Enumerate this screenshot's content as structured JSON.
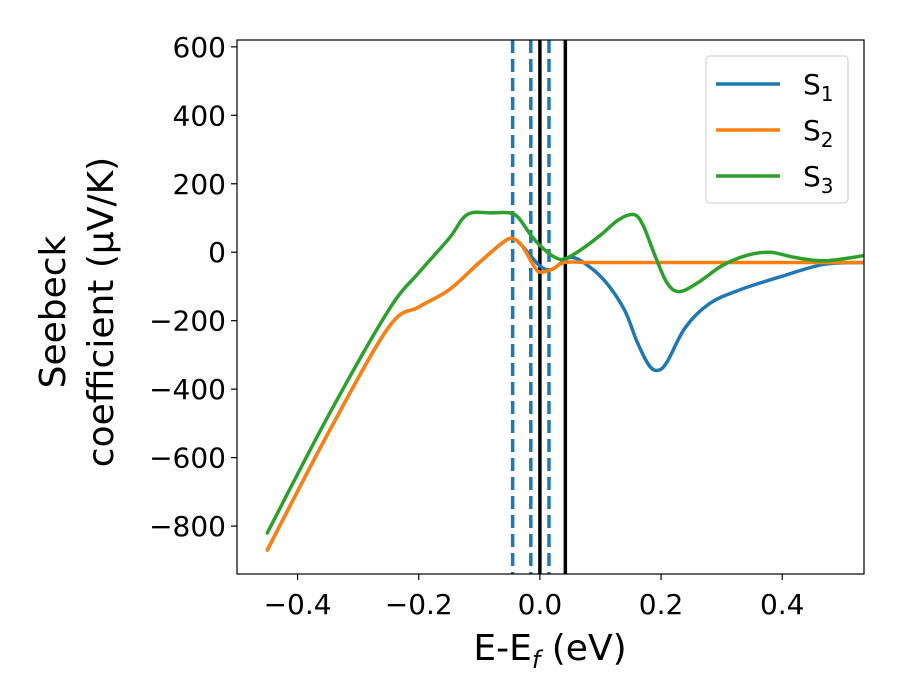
{
  "chart_data": {
    "type": "line",
    "xlabel": {
      "main": "E-E",
      "sub": "f",
      "tail": " (eV)"
    },
    "ylabel": {
      "line1": "Seebeck",
      "line2": "coefficient  (μV/K)"
    },
    "xlim": [
      -0.5,
      0.535
    ],
    "ylim": [
      -940,
      620
    ],
    "xticks": [
      {
        "value": -0.4,
        "label": "−0.4"
      },
      {
        "value": -0.2,
        "label": "−0.2"
      },
      {
        "value": 0.0,
        "label": "0.0"
      },
      {
        "value": 0.2,
        "label": "0.2"
      },
      {
        "value": 0.4,
        "label": "0.4"
      }
    ],
    "yticks": [
      {
        "value": 600,
        "label": "600"
      },
      {
        "value": 400,
        "label": "400"
      },
      {
        "value": 200,
        "label": "200"
      },
      {
        "value": 0,
        "label": "0"
      },
      {
        "value": -200,
        "label": "−200"
      },
      {
        "value": -400,
        "label": "−400"
      },
      {
        "value": -600,
        "label": "−600"
      },
      {
        "value": -800,
        "label": "−800"
      }
    ],
    "grid": false,
    "legend_position": "top-right",
    "series": [
      {
        "name": "S",
        "sub": "1",
        "color": "#1f77b4",
        "x": [
          -0.45,
          -0.35,
          -0.25,
          -0.2,
          -0.15,
          -0.1,
          -0.06,
          -0.045,
          -0.03,
          0.0,
          0.02,
          0.05,
          0.08,
          0.11,
          0.14,
          0.16,
          0.18,
          0.195,
          0.21,
          0.24,
          0.28,
          0.33,
          0.4,
          0.47,
          0.535
        ],
        "y": [
          -870,
          -530,
          -220,
          -160,
          -110,
          -30,
          30,
          40,
          20,
          -40,
          -50,
          -15,
          -40,
          -90,
          -170,
          -260,
          -330,
          -345,
          -320,
          -220,
          -150,
          -110,
          -70,
          -35,
          -30
        ]
      },
      {
        "name": "S",
        "sub": "2",
        "color": "#ff7f0e",
        "x": [
          -0.45,
          -0.35,
          -0.25,
          -0.2,
          -0.15,
          -0.1,
          -0.06,
          -0.045,
          -0.03,
          -0.01,
          0.0,
          0.02,
          0.04,
          0.08,
          0.12,
          0.16,
          0.2,
          0.3,
          0.4,
          0.47,
          0.535
        ],
        "y": [
          -870,
          -530,
          -220,
          -160,
          -110,
          -30,
          30,
          40,
          20,
          -40,
          -58,
          -50,
          -30,
          -30,
          -30,
          -30,
          -30,
          -30,
          -30,
          -30,
          -30
        ]
      },
      {
        "name": "S",
        "sub": "3",
        "color": "#2ca02c",
        "x": [
          -0.45,
          -0.35,
          -0.25,
          -0.2,
          -0.15,
          -0.12,
          -0.08,
          -0.05,
          -0.035,
          -0.015,
          0.0,
          0.02,
          0.04,
          0.07,
          0.1,
          0.13,
          0.155,
          0.17,
          0.19,
          0.21,
          0.23,
          0.26,
          0.3,
          0.34,
          0.38,
          0.42,
          0.47,
          0.535
        ],
        "y": [
          -820,
          -480,
          -170,
          -60,
          40,
          110,
          115,
          115,
          100,
          50,
          20,
          -10,
          -20,
          10,
          50,
          95,
          110,
          80,
          -10,
          -90,
          -115,
          -90,
          -40,
          -10,
          0,
          -15,
          -25,
          -10
        ]
      }
    ],
    "vlines": [
      {
        "x": -0.045,
        "style": "dashed",
        "color": "#1f77b4"
      },
      {
        "x": -0.015,
        "style": "dashed",
        "color": "#1f77b4"
      },
      {
        "x": 0.015,
        "style": "dashed",
        "color": "#1f77b4"
      },
      {
        "x": 0.0,
        "style": "solid",
        "color": "#000000"
      },
      {
        "x": 0.042,
        "style": "solid",
        "color": "#000000"
      }
    ]
  }
}
